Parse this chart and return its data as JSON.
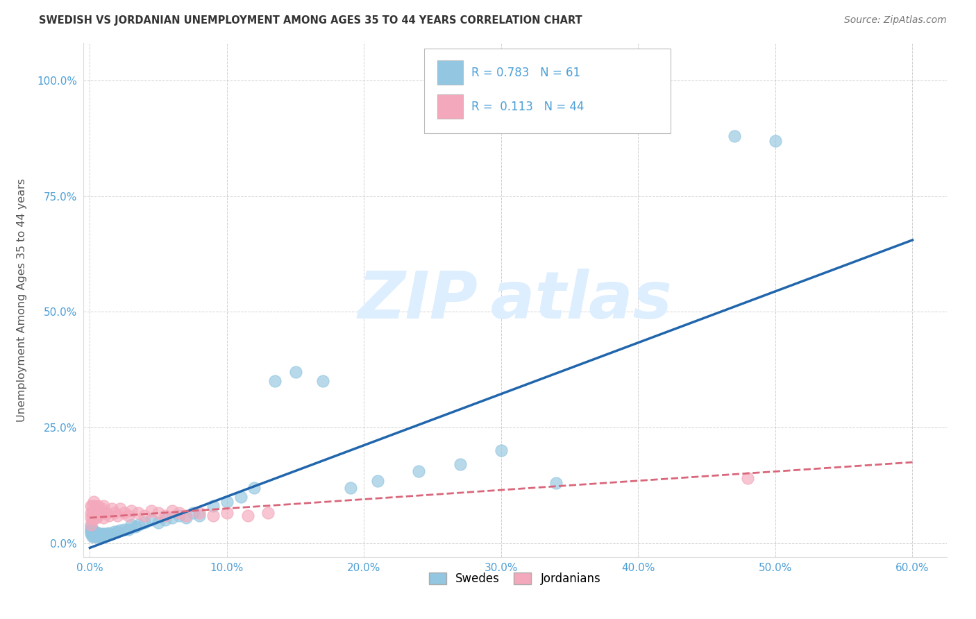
{
  "title": "SWEDISH VS JORDANIAN UNEMPLOYMENT AMONG AGES 35 TO 44 YEARS CORRELATION CHART",
  "source": "Source: ZipAtlas.com",
  "ylabel": "Unemployment Among Ages 35 to 44 years",
  "xlim_min": -0.005,
  "xlim_max": 0.625,
  "ylim_min": -0.03,
  "ylim_max": 1.08,
  "xticks": [
    0.0,
    0.1,
    0.2,
    0.3,
    0.4,
    0.5,
    0.6
  ],
  "xticklabels": [
    "0.0%",
    "10.0%",
    "20.0%",
    "30.0%",
    "40.0%",
    "50.0%",
    "60.0%"
  ],
  "yticks": [
    0.0,
    0.25,
    0.5,
    0.75,
    1.0
  ],
  "yticklabels": [
    "0.0%",
    "25.0%",
    "50.0%",
    "75.0%",
    "100.0%"
  ],
  "swedes_R": 0.783,
  "swedes_N": 61,
  "jordanians_R": 0.113,
  "jordanians_N": 44,
  "swede_color": "#93C6E0",
  "jordan_color": "#F4A8BB",
  "swede_line_color": "#2166AC",
  "jordan_line_color": "#D9667A",
  "background_color": "#FFFFFF",
  "grid_color": "#CCCCCC",
  "tick_color": "#4D9FD6",
  "axis_label_color": "#555555",
  "title_color": "#333333",
  "source_color": "#777777",
  "watermark_color": "#DDEEFF",
  "legend_label_swedes": "Swedes",
  "legend_label_jordanians": "Jordanians",
  "swedes_x": [
    0.001,
    0.001,
    0.001,
    0.001,
    0.002,
    0.002,
    0.002,
    0.002,
    0.003,
    0.003,
    0.003,
    0.004,
    0.004,
    0.004,
    0.005,
    0.005,
    0.005,
    0.006,
    0.006,
    0.007,
    0.007,
    0.008,
    0.008,
    0.009,
    0.01,
    0.011,
    0.012,
    0.014,
    0.016,
    0.018,
    0.02,
    0.022,
    0.025,
    0.028,
    0.03,
    0.033,
    0.036,
    0.04,
    0.045,
    0.05,
    0.055,
    0.06,
    0.065,
    0.07,
    0.075,
    0.08,
    0.09,
    0.1,
    0.11,
    0.12,
    0.135,
    0.15,
    0.17,
    0.19,
    0.21,
    0.24,
    0.27,
    0.3,
    0.34,
    0.47,
    0.5
  ],
  "swedes_y": [
    0.02,
    0.025,
    0.03,
    0.035,
    0.015,
    0.02,
    0.025,
    0.03,
    0.015,
    0.02,
    0.025,
    0.015,
    0.02,
    0.025,
    0.015,
    0.018,
    0.022,
    0.015,
    0.02,
    0.015,
    0.02,
    0.015,
    0.02,
    0.018,
    0.02,
    0.018,
    0.02,
    0.022,
    0.02,
    0.025,
    0.025,
    0.028,
    0.03,
    0.03,
    0.04,
    0.035,
    0.04,
    0.045,
    0.05,
    0.045,
    0.05,
    0.055,
    0.06,
    0.055,
    0.065,
    0.06,
    0.08,
    0.09,
    0.1,
    0.12,
    0.35,
    0.37,
    0.35,
    0.12,
    0.135,
    0.155,
    0.17,
    0.2,
    0.13,
    0.88,
    0.87
  ],
  "jordanians_x": [
    0.001,
    0.001,
    0.001,
    0.001,
    0.002,
    0.002,
    0.002,
    0.003,
    0.003,
    0.003,
    0.004,
    0.004,
    0.005,
    0.005,
    0.006,
    0.006,
    0.007,
    0.008,
    0.009,
    0.01,
    0.01,
    0.012,
    0.014,
    0.016,
    0.018,
    0.02,
    0.022,
    0.025,
    0.028,
    0.03,
    0.035,
    0.04,
    0.045,
    0.05,
    0.055,
    0.06,
    0.065,
    0.07,
    0.08,
    0.09,
    0.1,
    0.115,
    0.13,
    0.48
  ],
  "jordanians_y": [
    0.04,
    0.055,
    0.065,
    0.08,
    0.05,
    0.065,
    0.08,
    0.055,
    0.07,
    0.09,
    0.06,
    0.08,
    0.055,
    0.075,
    0.06,
    0.08,
    0.07,
    0.065,
    0.075,
    0.055,
    0.08,
    0.065,
    0.06,
    0.075,
    0.065,
    0.06,
    0.075,
    0.065,
    0.06,
    0.07,
    0.065,
    0.06,
    0.07,
    0.065,
    0.06,
    0.07,
    0.065,
    0.06,
    0.065,
    0.06,
    0.065,
    0.06,
    0.065,
    0.14
  ],
  "sw_line_x0": 0.0,
  "sw_line_x1": 0.6,
  "sw_line_y0": -0.01,
  "sw_line_y1": 0.655,
  "jd_line_x0": 0.0,
  "jd_line_x1": 0.6,
  "jd_line_y0": 0.055,
  "jd_line_y1": 0.175
}
